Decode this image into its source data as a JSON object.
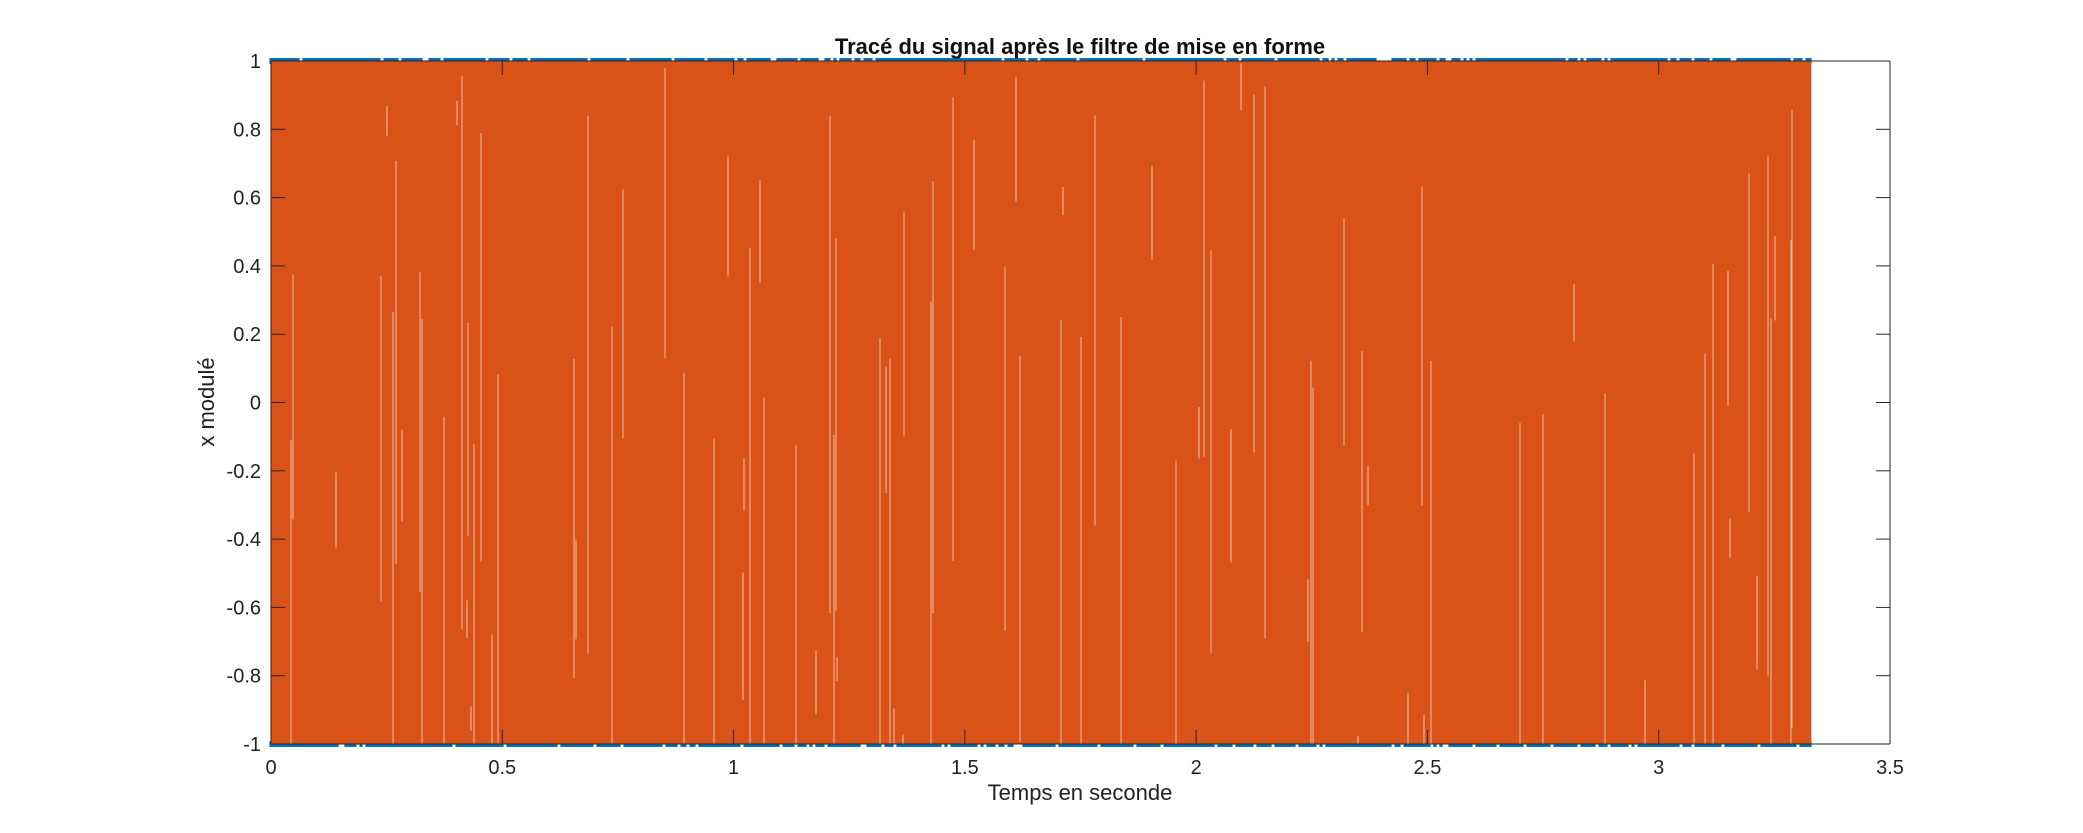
{
  "chart_data": {
    "type": "line",
    "title": "Tracé du signal après le filtre de mise en forme",
    "xlabel": "Temps en seconde",
    "ylabel": "x modulé",
    "xlim": [
      0,
      3.5
    ],
    "ylim": [
      -1,
      1
    ],
    "x_ticks": [
      0,
      0.5,
      1,
      1.5,
      2,
      2.5,
      3,
      3.5
    ],
    "y_ticks": [
      -1,
      -0.8,
      -0.6,
      -0.4,
      -0.2,
      0,
      0.2,
      0.4,
      0.6,
      0.8,
      1
    ],
    "x_tick_labels": [
      "0",
      "0.5",
      "1",
      "1.5",
      "2",
      "2.5",
      "3",
      "3.5"
    ],
    "y_tick_labels": [
      "-1",
      "-0.8",
      "-0.6",
      "-0.4",
      "-0.2",
      "0",
      "0.2",
      "0.4",
      "0.6",
      "0.8",
      "1"
    ],
    "grid": false,
    "legend": "none",
    "series": [
      {
        "color": "#0072BD",
        "description_kind": "binary square wave",
        "x_range": [
          0,
          3.33
        ],
        "levels": [
          -1,
          1
        ]
      },
      {
        "color": "#D95319",
        "description_kind": "dense oscillating modulated signal",
        "x_range": [
          0,
          3.33
        ],
        "amplitude_range": [
          -1,
          1
        ]
      }
    ]
  }
}
